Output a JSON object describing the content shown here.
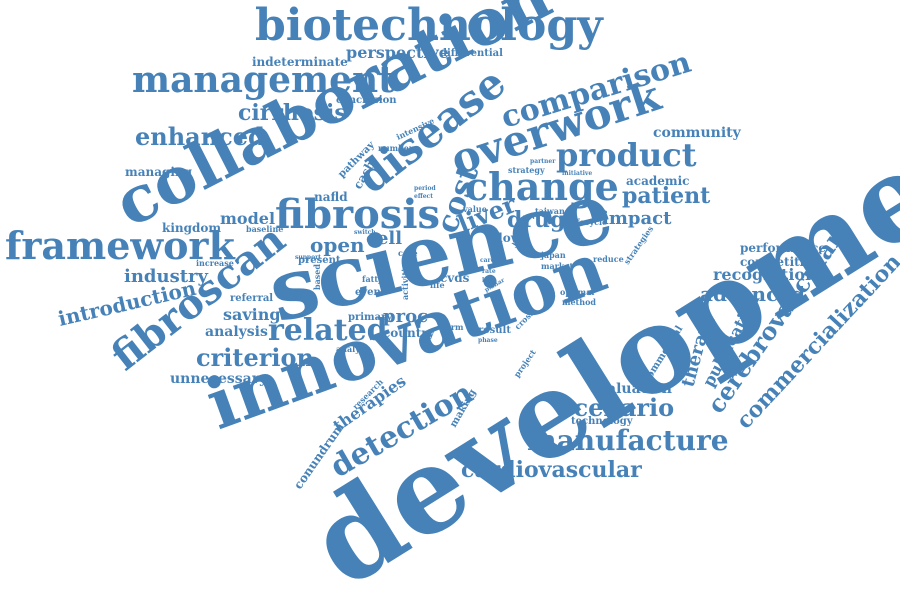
{
  "colors": {
    "text": "#4682b8",
    "background": "#ffffff"
  },
  "words": {
    "development": "development",
    "science": "science",
    "innovation": "innovation",
    "collaboration": "collaboration",
    "biotechnology": "biotechnology",
    "management": "management",
    "framework": "framework",
    "fibroscan": "fibroscan",
    "fibrosis": "fibrosis",
    "disease": "disease",
    "overwork": "overwork",
    "cost": "cost",
    "change": "change",
    "product": "product",
    "comparison": "comparison",
    "manufacture": "manufacture",
    "cardiovascular": "cardiovascular",
    "detection": "detection",
    "scenario": "scenario",
    "commercialization": "commercialization",
    "cerebrovascular": "cerebrovascular",
    "therapy": "therapy",
    "publication": "publication",
    "related": "related",
    "criterion": "criterion",
    "liver": "liver",
    "drug": "drug",
    "patient": "patient",
    "impact": "impact",
    "advanced": "advanced",
    "recognition": "recognition",
    "competitive": "competitive",
    "performance": "performance",
    "enhanced": "enhanced",
    "cirrhosis": "cirrhosis",
    "perspective": "perspective",
    "differential": "differential",
    "indeterminate": "indeterminate",
    "conclusion": "conclusion",
    "community": "community",
    "academic": "academic",
    "managing": "managing",
    "pathway": "pathway",
    "cash": "cash",
    "nafld": "nafld",
    "model": "model",
    "kingdom": "kingdom",
    "baseline": "baseline",
    "open": "open",
    "cell": "cell",
    "industry": "industry",
    "introduction": "introduction",
    "saving": "saving",
    "analysis": "analysis",
    "referral": "referral",
    "unnecessary": "unnecessary",
    "proc": "proc",
    "country": "country",
    "therapies": "therapies",
    "conundrum": "conundrum",
    "evaluation": "evaluation",
    "technology": "technology",
    "intensive": "intensive",
    "number": "number",
    "present": "present",
    "event": "event",
    "primary": "primary",
    "fatty": "fatty",
    "cvds": "cvds",
    "life": "life",
    "result": "result",
    "phase": "phase",
    "firm": "firm",
    "making": "making",
    "research": "research",
    "analyze": "analyze",
    "project": "project",
    "commercial": "commercial",
    "optimal": "optimal",
    "method": "method",
    "cross": "cross",
    "japan": "japan",
    "market": "market",
    "reduce": "reduce",
    "strategies": "strategies",
    "taiwan": "taiwan",
    "lifecycle": "lifecycle",
    "value": "value",
    "flow": "flow",
    "strategy": "strategy",
    "initiative": "initiative",
    "partner": "partner",
    "switch": "switch",
    "case": "case",
    "increase": "increase",
    "support": "support",
    "based": "based",
    "period": "period",
    "effect": "effect",
    "year": "year",
    "care": "care",
    "rate": "rate",
    "key": "key",
    "planar": "planar",
    "activities": "activities"
  }
}
